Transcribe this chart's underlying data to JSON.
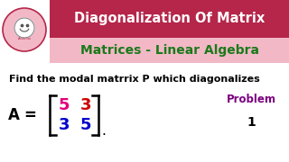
{
  "bg_color": "#ffffff",
  "header_bg": "#b5264a",
  "header_text": "Diagonalization Of Matrix",
  "header_text_color": "#ffffff",
  "subheader_text": "Matrices - Linear Algebra",
  "subheader_text_color": "#1a7a1a",
  "subheader_bg": "#f2b8c6",
  "body_text": "Find the modal matrrix P which diagonalizes",
  "body_text_color": "#000000",
  "matrix_color_top_left": "#e0007f",
  "matrix_color_top_right": "#cc0000",
  "matrix_color_bottom_left": "#0000cc",
  "matrix_color_bottom_right": "#0000cc",
  "problem_text": "Problem",
  "problem_color": "#7b0080",
  "problem_num": "1",
  "logo_border_color": "#b5264a",
  "logo_circle_color": "#f2b8c6"
}
